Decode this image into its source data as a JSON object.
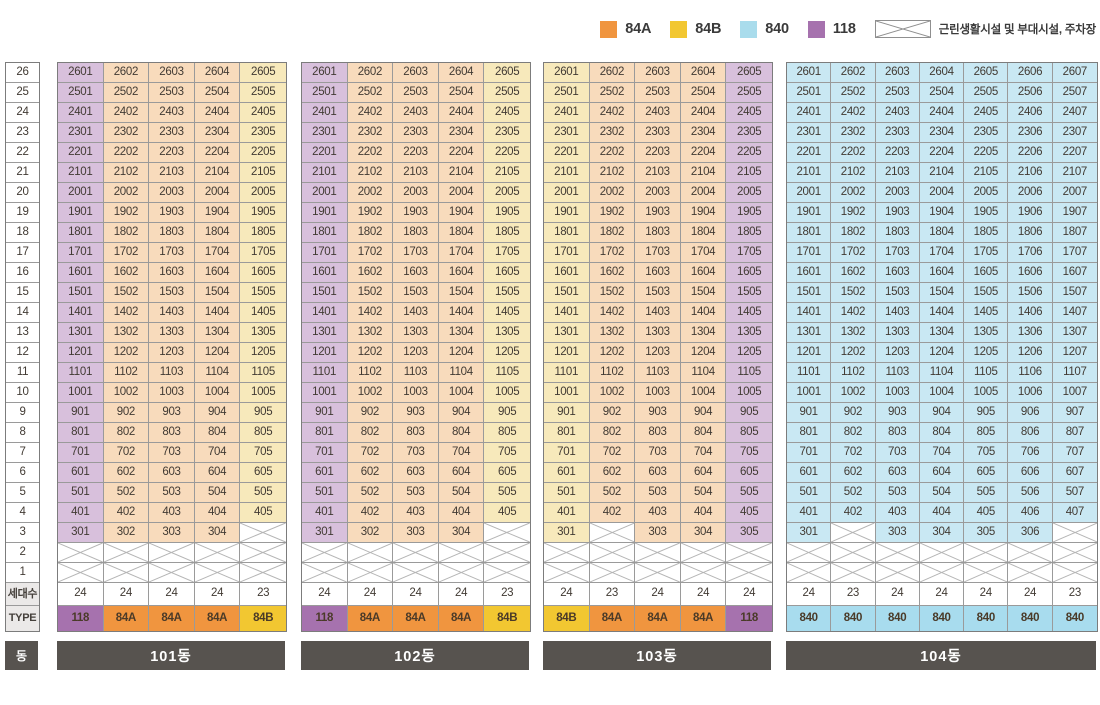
{
  "legend": {
    "items": [
      {
        "label": "84A",
        "color": "#f0953f"
      },
      {
        "label": "84B",
        "color": "#f2c731"
      },
      {
        "label": "840",
        "color": "#a9dcec"
      },
      {
        "label": "118",
        "color": "#a672ae"
      }
    ],
    "crossed_label": "근린생활시설 및 부대시설, 주차장"
  },
  "axis": {
    "floors": [
      "26",
      "25",
      "24",
      "23",
      "22",
      "21",
      "20",
      "19",
      "18",
      "17",
      "16",
      "15",
      "14",
      "13",
      "12",
      "11",
      "10",
      "9",
      "8",
      "7",
      "6",
      "5",
      "4",
      "3",
      "2",
      "1"
    ],
    "count_label": "세대수",
    "type_label": "TYPE",
    "dong_label": "동"
  },
  "type_colors": {
    "84A": {
      "body": "#f8dbbc",
      "strong": "#f0953f"
    },
    "84B": {
      "body": "#f7e9bb",
      "strong": "#f2c731"
    },
    "840": {
      "body": "#c9e8f3",
      "strong": "#a8dcee"
    },
    "118": {
      "body": "#d8c0dc",
      "strong": "#a672ae"
    }
  },
  "buildings": [
    {
      "name": "101동",
      "column_types": [
        "118",
        "84A",
        "84A",
        "84A",
        "84B"
      ],
      "rows": [
        [
          "2601",
          "2602",
          "2603",
          "2604",
          "2605"
        ],
        [
          "2501",
          "2502",
          "2503",
          "2504",
          "2505"
        ],
        [
          "2401",
          "2402",
          "2403",
          "2404",
          "2405"
        ],
        [
          "2301",
          "2302",
          "2303",
          "2304",
          "2305"
        ],
        [
          "2201",
          "2202",
          "2203",
          "2204",
          "2205"
        ],
        [
          "2101",
          "2102",
          "2103",
          "2104",
          "2105"
        ],
        [
          "2001",
          "2002",
          "2003",
          "2004",
          "2005"
        ],
        [
          "1901",
          "1902",
          "1903",
          "1904",
          "1905"
        ],
        [
          "1801",
          "1802",
          "1803",
          "1804",
          "1805"
        ],
        [
          "1701",
          "1702",
          "1703",
          "1704",
          "1705"
        ],
        [
          "1601",
          "1602",
          "1603",
          "1604",
          "1605"
        ],
        [
          "1501",
          "1502",
          "1503",
          "1504",
          "1505"
        ],
        [
          "1401",
          "1402",
          "1403",
          "1404",
          "1405"
        ],
        [
          "1301",
          "1302",
          "1303",
          "1304",
          "1305"
        ],
        [
          "1201",
          "1202",
          "1203",
          "1204",
          "1205"
        ],
        [
          "1101",
          "1102",
          "1103",
          "1104",
          "1105"
        ],
        [
          "1001",
          "1002",
          "1003",
          "1004",
          "1005"
        ],
        [
          "901",
          "902",
          "903",
          "904",
          "905"
        ],
        [
          "801",
          "802",
          "803",
          "804",
          "805"
        ],
        [
          "701",
          "702",
          "703",
          "704",
          "705"
        ],
        [
          "601",
          "602",
          "603",
          "604",
          "605"
        ],
        [
          "501",
          "502",
          "503",
          "504",
          "505"
        ],
        [
          "401",
          "402",
          "403",
          "404",
          "405"
        ],
        [
          "301",
          "302",
          "303",
          "304",
          null
        ],
        [
          null,
          null,
          null,
          null,
          null
        ],
        [
          null,
          null,
          null,
          null,
          null
        ]
      ],
      "counts": [
        "24",
        "24",
        "24",
        "24",
        "23"
      ],
      "types": [
        "118",
        "84A",
        "84A",
        "84A",
        "84B"
      ]
    },
    {
      "name": "102동",
      "column_types": [
        "118",
        "84A",
        "84A",
        "84A",
        "84B"
      ],
      "rows": [
        [
          "2601",
          "2602",
          "2603",
          "2604",
          "2605"
        ],
        [
          "2501",
          "2502",
          "2503",
          "2504",
          "2505"
        ],
        [
          "2401",
          "2402",
          "2403",
          "2404",
          "2405"
        ],
        [
          "2301",
          "2302",
          "2303",
          "2304",
          "2305"
        ],
        [
          "2201",
          "2202",
          "2203",
          "2204",
          "2205"
        ],
        [
          "2101",
          "2102",
          "2103",
          "2104",
          "2105"
        ],
        [
          "2001",
          "2002",
          "2003",
          "2004",
          "2005"
        ],
        [
          "1901",
          "1902",
          "1903",
          "1904",
          "1905"
        ],
        [
          "1801",
          "1802",
          "1803",
          "1804",
          "1805"
        ],
        [
          "1701",
          "1702",
          "1703",
          "1704",
          "1705"
        ],
        [
          "1601",
          "1602",
          "1603",
          "1604",
          "1605"
        ],
        [
          "1501",
          "1502",
          "1503",
          "1504",
          "1505"
        ],
        [
          "1401",
          "1402",
          "1403",
          "1404",
          "1405"
        ],
        [
          "1301",
          "1302",
          "1303",
          "1304",
          "1305"
        ],
        [
          "1201",
          "1202",
          "1203",
          "1204",
          "1205"
        ],
        [
          "1101",
          "1102",
          "1103",
          "1104",
          "1105"
        ],
        [
          "1001",
          "1002",
          "1003",
          "1004",
          "1005"
        ],
        [
          "901",
          "902",
          "903",
          "904",
          "905"
        ],
        [
          "801",
          "802",
          "803",
          "804",
          "805"
        ],
        [
          "701",
          "702",
          "703",
          "704",
          "705"
        ],
        [
          "601",
          "602",
          "603",
          "604",
          "605"
        ],
        [
          "501",
          "502",
          "503",
          "504",
          "505"
        ],
        [
          "401",
          "402",
          "403",
          "404",
          "405"
        ],
        [
          "301",
          "302",
          "303",
          "304",
          null
        ],
        [
          null,
          null,
          null,
          null,
          null
        ],
        [
          null,
          null,
          null,
          null,
          null
        ]
      ],
      "counts": [
        "24",
        "24",
        "24",
        "24",
        "23"
      ],
      "types": [
        "118",
        "84A",
        "84A",
        "84A",
        "84B"
      ]
    },
    {
      "name": "103동",
      "column_types": [
        "84B",
        "84A",
        "84A",
        "84A",
        "118"
      ],
      "rows": [
        [
          "2601",
          "2602",
          "2603",
          "2604",
          "2605"
        ],
        [
          "2501",
          "2502",
          "2503",
          "2504",
          "2505"
        ],
        [
          "2401",
          "2402",
          "2403",
          "2404",
          "2405"
        ],
        [
          "2301",
          "2302",
          "2303",
          "2304",
          "2305"
        ],
        [
          "2201",
          "2202",
          "2203",
          "2204",
          "2205"
        ],
        [
          "2101",
          "2102",
          "2103",
          "2104",
          "2105"
        ],
        [
          "2001",
          "2002",
          "2003",
          "2004",
          "2005"
        ],
        [
          "1901",
          "1902",
          "1903",
          "1904",
          "1905"
        ],
        [
          "1801",
          "1802",
          "1803",
          "1804",
          "1805"
        ],
        [
          "1701",
          "1702",
          "1703",
          "1704",
          "1705"
        ],
        [
          "1601",
          "1602",
          "1603",
          "1604",
          "1605"
        ],
        [
          "1501",
          "1502",
          "1503",
          "1504",
          "1505"
        ],
        [
          "1401",
          "1402",
          "1403",
          "1404",
          "1405"
        ],
        [
          "1301",
          "1302",
          "1303",
          "1304",
          "1305"
        ],
        [
          "1201",
          "1202",
          "1203",
          "1204",
          "1205"
        ],
        [
          "1101",
          "1102",
          "1103",
          "1104",
          "1105"
        ],
        [
          "1001",
          "1002",
          "1003",
          "1004",
          "1005"
        ],
        [
          "901",
          "902",
          "903",
          "904",
          "905"
        ],
        [
          "801",
          "802",
          "803",
          "804",
          "805"
        ],
        [
          "701",
          "702",
          "703",
          "704",
          "705"
        ],
        [
          "601",
          "602",
          "603",
          "604",
          "605"
        ],
        [
          "501",
          "502",
          "503",
          "504",
          "505"
        ],
        [
          "401",
          "402",
          "403",
          "404",
          "405"
        ],
        [
          "301",
          null,
          "303",
          "304",
          "305"
        ],
        [
          null,
          null,
          null,
          null,
          null
        ],
        [
          null,
          null,
          null,
          null,
          null
        ]
      ],
      "counts": [
        "24",
        "23",
        "24",
        "24",
        "24"
      ],
      "types": [
        "84B",
        "84A",
        "84A",
        "84A",
        "118"
      ]
    },
    {
      "name": "104동",
      "column_types": [
        "840",
        "840",
        "840",
        "840",
        "840",
        "840",
        "840"
      ],
      "rows": [
        [
          "2601",
          "2602",
          "2603",
          "2604",
          "2605",
          "2606",
          "2607"
        ],
        [
          "2501",
          "2502",
          "2503",
          "2504",
          "2505",
          "2506",
          "2507"
        ],
        [
          "2401",
          "2402",
          "2403",
          "2404",
          "2405",
          "2406",
          "2407"
        ],
        [
          "2301",
          "2302",
          "2303",
          "2304",
          "2305",
          "2306",
          "2307"
        ],
        [
          "2201",
          "2202",
          "2203",
          "2204",
          "2205",
          "2206",
          "2207"
        ],
        [
          "2101",
          "2102",
          "2103",
          "2104",
          "2105",
          "2106",
          "2107"
        ],
        [
          "2001",
          "2002",
          "2003",
          "2004",
          "2005",
          "2006",
          "2007"
        ],
        [
          "1901",
          "1902",
          "1903",
          "1904",
          "1905",
          "1906",
          "1907"
        ],
        [
          "1801",
          "1802",
          "1803",
          "1804",
          "1805",
          "1806",
          "1807"
        ],
        [
          "1701",
          "1702",
          "1703",
          "1704",
          "1705",
          "1706",
          "1707"
        ],
        [
          "1601",
          "1602",
          "1603",
          "1604",
          "1605",
          "1606",
          "1607"
        ],
        [
          "1501",
          "1502",
          "1503",
          "1504",
          "1505",
          "1506",
          "1507"
        ],
        [
          "1401",
          "1402",
          "1403",
          "1404",
          "1405",
          "1406",
          "1407"
        ],
        [
          "1301",
          "1302",
          "1303",
          "1304",
          "1305",
          "1306",
          "1307"
        ],
        [
          "1201",
          "1202",
          "1203",
          "1204",
          "1205",
          "1206",
          "1207"
        ],
        [
          "1101",
          "1102",
          "1103",
          "1104",
          "1105",
          "1106",
          "1107"
        ],
        [
          "1001",
          "1002",
          "1003",
          "1004",
          "1005",
          "1006",
          "1007"
        ],
        [
          "901",
          "902",
          "903",
          "904",
          "905",
          "906",
          "907"
        ],
        [
          "801",
          "802",
          "803",
          "804",
          "805",
          "806",
          "807"
        ],
        [
          "701",
          "702",
          "703",
          "704",
          "705",
          "706",
          "707"
        ],
        [
          "601",
          "602",
          "603",
          "604",
          "605",
          "606",
          "607"
        ],
        [
          "501",
          "502",
          "503",
          "504",
          "505",
          "506",
          "507"
        ],
        [
          "401",
          "402",
          "403",
          "404",
          "405",
          "406",
          "407"
        ],
        [
          "301",
          null,
          "303",
          "304",
          "305",
          "306",
          null
        ],
        [
          null,
          null,
          null,
          null,
          null,
          null,
          null
        ],
        [
          null,
          null,
          null,
          null,
          null,
          null,
          null
        ]
      ],
      "counts": [
        "24",
        "23",
        "24",
        "24",
        "24",
        "24",
        "23"
      ],
      "types": [
        "840",
        "840",
        "840",
        "840",
        "840",
        "840",
        "840"
      ]
    }
  ]
}
